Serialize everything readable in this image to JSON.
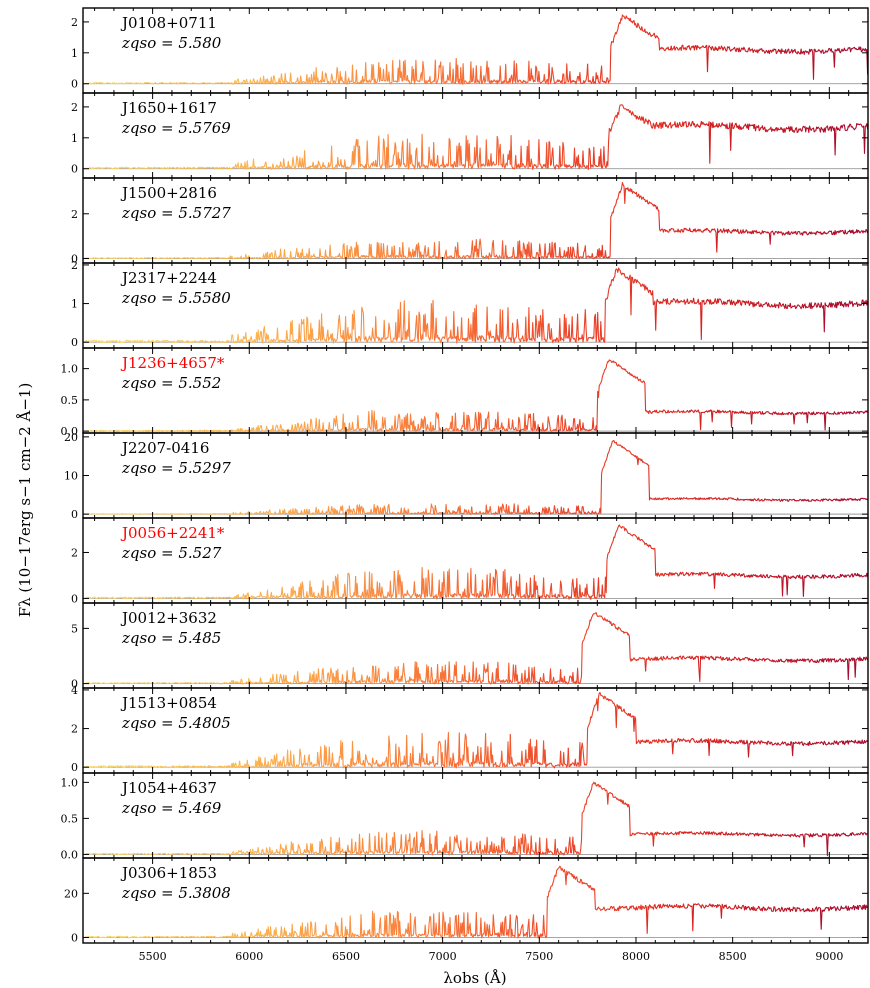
{
  "chart_data": {
    "type": "line",
    "xlabel": "λobs (Å)",
    "ylabel": "Fλ (10−17erg s−1 cm−2 Å−1)",
    "xlim": [
      5140,
      9200
    ],
    "xticks": [
      5500,
      6000,
      6500,
      7000,
      7500,
      8000,
      8500,
      9000
    ],
    "xtick_labels": [
      "5500",
      "6000",
      "6500",
      "7000",
      "7500",
      "8000",
      "8500",
      "9000"
    ],
    "colormap": [
      "#f8d66b",
      "#fcb14d",
      "#f9803b",
      "#ef4a2a",
      "#d7201f",
      "#a80b2d"
    ],
    "highlight_color": "#ff0000",
    "panels": [
      {
        "name": "J0108+0711",
        "z_label": "zqso = 5.580",
        "highlight": false,
        "ylim": [
          -0.3,
          2.45
        ],
        "yticks": [
          0,
          1,
          2
        ],
        "ytick_labels": [
          "0",
          "1",
          "2"
        ],
        "peak": 2.2,
        "cont": 1.1,
        "edge": 7870,
        "forest": 0.75,
        "seed": 11
      },
      {
        "name": "J1650+1617",
        "z_label": "zqso = 5.5769",
        "highlight": false,
        "ylim": [
          -0.3,
          2.45
        ],
        "yticks": [
          0,
          1,
          2
        ],
        "ytick_labels": [
          "0",
          "1",
          "2"
        ],
        "peak": 2.0,
        "cont": 1.35,
        "edge": 7860,
        "forest": 1.0,
        "seed": 23
      },
      {
        "name": "J1500+2816",
        "z_label": "zqso = 5.5727",
        "highlight": false,
        "ylim": [
          -0.2,
          3.6
        ],
        "yticks": [
          0,
          2
        ],
        "ytick_labels": [
          "0",
          "2"
        ],
        "peak": 3.3,
        "cont": 1.2,
        "edge": 7870,
        "forest": 0.8,
        "seed": 37
      },
      {
        "name": "J2317+2244",
        "z_label": "zqso = 5.5580",
        "highlight": false,
        "ylim": [
          -0.15,
          2.05
        ],
        "yticks": [
          0,
          1,
          2
        ],
        "ytick_labels": [
          "0",
          "1",
          "2"
        ],
        "peak": 1.9,
        "cont": 1.0,
        "edge": 7840,
        "forest": 1.0,
        "seed": 41
      },
      {
        "name": "J1236+4657*",
        "z_label": "zqso = 5.552",
        "highlight": true,
        "ylim": [
          -0.03,
          1.33
        ],
        "yticks": [
          0,
          0.5,
          1
        ],
        "ytick_labels": [
          "0.0",
          "0.5",
          "1.0"
        ],
        "peak": 1.15,
        "cont": 0.3,
        "edge": 7800,
        "forest": 0.3,
        "seed": 53
      },
      {
        "name": "J2207-0416",
        "z_label": "zqso = 5.5297",
        "highlight": false,
        "ylim": [
          -1.0,
          21.0
        ],
        "yticks": [
          0,
          10,
          20
        ],
        "ytick_labels": [
          "0",
          "10",
          "20"
        ],
        "peak": 19.0,
        "cont": 3.8,
        "edge": 7820,
        "forest": 2.5,
        "seed": 67
      },
      {
        "name": "J0056+2241*",
        "z_label": "zqso = 5.527",
        "highlight": true,
        "ylim": [
          -0.2,
          3.5
        ],
        "yticks": [
          0,
          2
        ],
        "ytick_labels": [
          "0",
          "2"
        ],
        "peak": 3.2,
        "cont": 1.0,
        "edge": 7850,
        "forest": 1.2,
        "seed": 71
      },
      {
        "name": "J0012+3632",
        "z_label": "zqso = 5.485",
        "highlight": false,
        "ylim": [
          -0.4,
          7.3
        ],
        "yticks": [
          0,
          5
        ],
        "ytick_labels": [
          "0",
          "5"
        ],
        "peak": 6.5,
        "cont": 2.2,
        "edge": 7720,
        "forest": 1.8,
        "seed": 83
      },
      {
        "name": "J1513+0854",
        "z_label": "zqso = 5.4805",
        "highlight": false,
        "ylim": [
          -0.3,
          4.1
        ],
        "yticks": [
          0,
          2,
          4
        ],
        "ytick_labels": [
          "0",
          "2",
          "4"
        ],
        "peak": 3.8,
        "cont": 1.3,
        "edge": 7750,
        "forest": 1.6,
        "seed": 97
      },
      {
        "name": "J1054+4637",
        "z_label": "zqso = 5.469",
        "highlight": false,
        "ylim": [
          -0.05,
          1.13
        ],
        "yticks": [
          0,
          0.5,
          1
        ],
        "ytick_labels": [
          "0.0",
          "0.5",
          "1.0"
        ],
        "peak": 1.0,
        "cont": 0.28,
        "edge": 7720,
        "forest": 0.3,
        "seed": 101
      },
      {
        "name": "J0306+1853",
        "z_label": "zqso = 5.3808",
        "highlight": false,
        "ylim": [
          -2.5,
          36.0
        ],
        "yticks": [
          0,
          20
        ],
        "ytick_labels": [
          "0",
          "20"
        ],
        "peak": 32.0,
        "cont": 13.5,
        "edge": 7540,
        "forest": 11.0,
        "seed": 113
      }
    ]
  }
}
